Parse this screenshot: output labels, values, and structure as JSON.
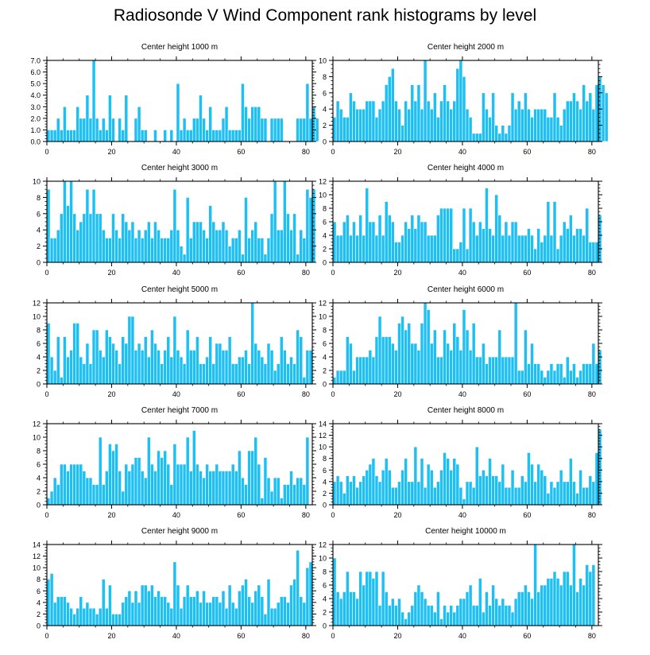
{
  "title": "Radiosonde V Wind Component rank histograms by level",
  "colors": {
    "bar": "#1ebff2",
    "bar_edge": "#ffffff",
    "axis": "#000000"
  },
  "chart_data": [
    {
      "type": "bar",
      "title": "Center height 1000 m",
      "x_start": 0,
      "xlim": [
        0,
        82
      ],
      "ylim": [
        0,
        7
      ],
      "xticks": [
        "0",
        "20",
        "40",
        "60",
        "80"
      ],
      "yticks": [
        "0.0",
        "1.0",
        "2.0",
        "3.0",
        "4.0",
        "5.0",
        "6.0",
        "7.0"
      ],
      "values": [
        1,
        1,
        1,
        2,
        1,
        3,
        1,
        1,
        1,
        3,
        2,
        2,
        4,
        2,
        7,
        2,
        1,
        2,
        1,
        4,
        2,
        0,
        2,
        1,
        4,
        0,
        0,
        2,
        3,
        1,
        1,
        0,
        0,
        1,
        0,
        0,
        1,
        0,
        1,
        0,
        5,
        1,
        2,
        1,
        1,
        2,
        2,
        4,
        2,
        1,
        3,
        1,
        1,
        1,
        2,
        3,
        1,
        1,
        1,
        1,
        5,
        3,
        2,
        3,
        3,
        3,
        2,
        2,
        0,
        2,
        2,
        2,
        2,
        0,
        0,
        0,
        0,
        2,
        2,
        2,
        5,
        2,
        3,
        2
      ]
    },
    {
      "type": "bar",
      "title": "Center height 2000 m",
      "x_start": 0,
      "xlim": [
        0,
        82
      ],
      "ylim": [
        0,
        10
      ],
      "xticks": [
        "0",
        "20",
        "40",
        "60",
        "80"
      ],
      "yticks": [
        "0",
        "2",
        "4",
        "6",
        "8",
        "10"
      ],
      "values": [
        3,
        5,
        4,
        3,
        3,
        6,
        5,
        4,
        4,
        4,
        5,
        5,
        5,
        3,
        4,
        5,
        7,
        8,
        9,
        5,
        4,
        2,
        5,
        4,
        7,
        5,
        7,
        4,
        10,
        5,
        4,
        6,
        3,
        5,
        7,
        5,
        4,
        5,
        9,
        10,
        8,
        4,
        3,
        1,
        1,
        1,
        6,
        4,
        3,
        6,
        2,
        1,
        2,
        1,
        2,
        6,
        4,
        5,
        4,
        6,
        4,
        3,
        4,
        4,
        4,
        4,
        3,
        3,
        6,
        3,
        2,
        4,
        5,
        5,
        6,
        5,
        4,
        7,
        5,
        6,
        4,
        7,
        8,
        7,
        6
      ]
    },
    {
      "type": "bar",
      "title": "Center height 3000 m",
      "x_start": 0,
      "xlim": [
        0,
        82
      ],
      "ylim": [
        0,
        10
      ],
      "xticks": [
        "0",
        "20",
        "40",
        "60",
        "80"
      ],
      "yticks": [
        "0",
        "2",
        "4",
        "6",
        "8",
        "10"
      ],
      "values": [
        9,
        3,
        3,
        4,
        6,
        10,
        7,
        10,
        6,
        4,
        5,
        6,
        9,
        6,
        9,
        6,
        6,
        4,
        3,
        3,
        6,
        4,
        3,
        6,
        5,
        4,
        5,
        3,
        4,
        3,
        4,
        5,
        3,
        5,
        4,
        3,
        3,
        3,
        4,
        9,
        4,
        2,
        1,
        8,
        3,
        5,
        5,
        5,
        4,
        3,
        7,
        5,
        4,
        4,
        5,
        4,
        2,
        3,
        3,
        4,
        1,
        8,
        3,
        4,
        5,
        3,
        3,
        1,
        3,
        6,
        10,
        4,
        4,
        10,
        6,
        4,
        6,
        1,
        4,
        3,
        9,
        8,
        9
      ]
    },
    {
      "type": "bar",
      "title": "Center height 4000 m",
      "x_start": 0,
      "xlim": [
        0,
        82
      ],
      "ylim": [
        0,
        12
      ],
      "xticks": [
        "0",
        "20",
        "40",
        "60",
        "80"
      ],
      "yticks": [
        "0",
        "2",
        "4",
        "6",
        "8",
        "10",
        "12"
      ],
      "values": [
        6,
        4,
        4,
        6,
        7,
        4,
        6,
        4,
        7,
        4,
        11,
        6,
        6,
        4,
        7,
        4,
        9,
        7,
        6,
        3,
        3,
        4,
        6,
        5,
        7,
        5,
        7,
        6,
        6,
        4,
        4,
        4,
        7,
        8,
        8,
        8,
        8,
        2,
        2,
        3,
        8,
        2,
        8,
        6,
        4,
        6,
        5,
        11,
        5,
        4,
        10,
        7,
        4,
        6,
        4,
        6,
        6,
        4,
        4,
        4,
        5,
        4,
        2,
        5,
        3,
        4,
        9,
        4,
        9,
        2,
        4,
        6,
        5,
        7,
        4,
        5,
        5,
        4,
        8,
        3,
        3,
        3,
        7
      ]
    },
    {
      "type": "bar",
      "title": "Center height 5000 m",
      "x_start": 0,
      "xlim": [
        0,
        82
      ],
      "ylim": [
        0,
        12
      ],
      "xticks": [
        "0",
        "20",
        "40",
        "60",
        "80"
      ],
      "yticks": [
        "0",
        "2",
        "4",
        "6",
        "8",
        "10",
        "12"
      ],
      "values": [
        9,
        4,
        2,
        7,
        1,
        7,
        4,
        5,
        9,
        9,
        4,
        3,
        6,
        3,
        8,
        8,
        5,
        4,
        8,
        7,
        6,
        5,
        3,
        7,
        6,
        10,
        10,
        5,
        6,
        5,
        7,
        4,
        8,
        6,
        5,
        3,
        5,
        7,
        4,
        10,
        5,
        4,
        3,
        8,
        5,
        5,
        7,
        3,
        3,
        4,
        7,
        3,
        6,
        6,
        5,
        5,
        7,
        3,
        3,
        4,
        4,
        5,
        3,
        12,
        6,
        5,
        4,
        3,
        6,
        5,
        2,
        3,
        7,
        5,
        3,
        4,
        3,
        8,
        7,
        1,
        5,
        5
      ]
    },
    {
      "type": "bar",
      "title": "Center height 6000 m",
      "x_start": 0,
      "xlim": [
        0,
        82
      ],
      "ylim": [
        0,
        12
      ],
      "xticks": [
        "0",
        "20",
        "40",
        "60",
        "80"
      ],
      "yticks": [
        "0",
        "2",
        "4",
        "6",
        "8",
        "10",
        "12"
      ],
      "values": [
        1,
        2,
        2,
        2,
        7,
        6,
        2,
        4,
        4,
        4,
        4,
        5,
        4,
        7,
        10,
        7,
        7,
        7,
        6,
        5,
        9,
        10,
        8,
        9,
        6,
        6,
        5,
        9,
        12,
        11,
        6,
        8,
        4,
        4,
        8,
        6,
        5,
        9,
        7,
        5,
        11,
        8,
        5,
        9,
        4,
        4,
        6,
        3,
        4,
        4,
        4,
        8,
        4,
        4,
        4,
        4,
        12,
        2,
        2,
        8,
        3,
        6,
        3,
        3,
        2,
        1,
        2,
        3,
        2,
        3,
        3,
        1,
        4,
        2,
        3,
        1,
        2,
        3,
        3,
        3,
        6,
        3,
        5
      ]
    },
    {
      "type": "bar",
      "title": "Center height 7000 m",
      "x_start": 0,
      "xlim": [
        0,
        82
      ],
      "ylim": [
        0,
        12
      ],
      "xticks": [
        "0",
        "20",
        "40",
        "60",
        "80"
      ],
      "yticks": [
        "0",
        "2",
        "4",
        "6",
        "8",
        "10",
        "12"
      ],
      "values": [
        1,
        2,
        4,
        3,
        6,
        6,
        5,
        6,
        6,
        6,
        6,
        5,
        4,
        4,
        3,
        3,
        10,
        3,
        5,
        9,
        8,
        9,
        5,
        2,
        6,
        5,
        6,
        7,
        7,
        5,
        4,
        10,
        6,
        5,
        8,
        7,
        8,
        6,
        3,
        9,
        6,
        6,
        6,
        10,
        5,
        11,
        6,
        5,
        4,
        6,
        5,
        5,
        6,
        5,
        5,
        5,
        5,
        6,
        5,
        8,
        4,
        3,
        8,
        8,
        10,
        6,
        1,
        7,
        4,
        2,
        4,
        4,
        1,
        3,
        3,
        5,
        3,
        4,
        4,
        3,
        10
      ]
    },
    {
      "type": "bar",
      "title": "Center height 8000 m",
      "x_start": 0,
      "xlim": [
        0,
        82
      ],
      "ylim": [
        0,
        14
      ],
      "xticks": [
        "0",
        "20",
        "40",
        "60",
        "80"
      ],
      "yticks": [
        "0",
        "2",
        "4",
        "6",
        "8",
        "10",
        "12",
        "14"
      ],
      "values": [
        4,
        5,
        4,
        2,
        5,
        4,
        5,
        3,
        4,
        5,
        6,
        7,
        8,
        5,
        4,
        6,
        8,
        6,
        3,
        3,
        4,
        6,
        8,
        4,
        4,
        10,
        4,
        8,
        3,
        7,
        6,
        3,
        4,
        6,
        9,
        8,
        6,
        8,
        7,
        3,
        1,
        4,
        4,
        3,
        10,
        5,
        6,
        5,
        8,
        5,
        5,
        4,
        7,
        3,
        3,
        6,
        3,
        3,
        5,
        4,
        9,
        7,
        4,
        7,
        6,
        5,
        2,
        4,
        3,
        4,
        6,
        4,
        4,
        8,
        4,
        2,
        6,
        3,
        3,
        5,
        4,
        9,
        13
      ]
    },
    {
      "type": "bar",
      "title": "Center height 9000 m",
      "x_start": 0,
      "xlim": [
        0,
        82
      ],
      "ylim": [
        0,
        14
      ],
      "xticks": [
        "0",
        "20",
        "40",
        "60",
        "80"
      ],
      "yticks": [
        "0",
        "2",
        "4",
        "6",
        "8",
        "10",
        "12",
        "14"
      ],
      "values": [
        8,
        9,
        4,
        5,
        5,
        5,
        4,
        3,
        2,
        3,
        5,
        3,
        4,
        3,
        3,
        2,
        3,
        8,
        3,
        7,
        2,
        2,
        2,
        4,
        5,
        6,
        4,
        6,
        4,
        7,
        7,
        6,
        7,
        5,
        6,
        5,
        5,
        4,
        3,
        11,
        7,
        3,
        5,
        7,
        5,
        5,
        6,
        4,
        6,
        4,
        4,
        5,
        5,
        4,
        6,
        3,
        7,
        4,
        3,
        6,
        7,
        8,
        5,
        4,
        6,
        7,
        5,
        2,
        8,
        3,
        3,
        4,
        5,
        5,
        4,
        7,
        8,
        13,
        5,
        4,
        10,
        11
      ]
    },
    {
      "type": "bar",
      "title": "Center height 10000 m",
      "x_start": 0,
      "xlim": [
        0,
        82
      ],
      "ylim": [
        0,
        12
      ],
      "xticks": [
        "0",
        "20",
        "40",
        "60",
        "80"
      ],
      "yticks": [
        "0",
        "2",
        "4",
        "6",
        "8",
        "10",
        "12"
      ],
      "values": [
        10,
        5,
        4,
        5,
        8,
        5,
        5,
        4,
        8,
        6,
        8,
        8,
        7,
        8,
        3,
        8,
        5,
        3,
        4,
        3,
        4,
        2,
        1,
        2,
        3,
        5,
        6,
        5,
        4,
        3,
        3,
        2,
        5,
        1,
        3,
        2,
        3,
        2,
        3,
        4,
        4,
        5,
        6,
        3,
        3,
        7,
        2,
        5,
        3,
        6,
        4,
        3,
        4,
        3,
        3,
        2,
        4,
        5,
        5,
        6,
        5,
        4,
        12,
        5,
        6,
        6,
        7,
        7,
        8,
        7,
        6,
        8,
        8,
        6,
        12,
        5,
        7,
        6,
        9,
        8,
        9
      ]
    }
  ]
}
